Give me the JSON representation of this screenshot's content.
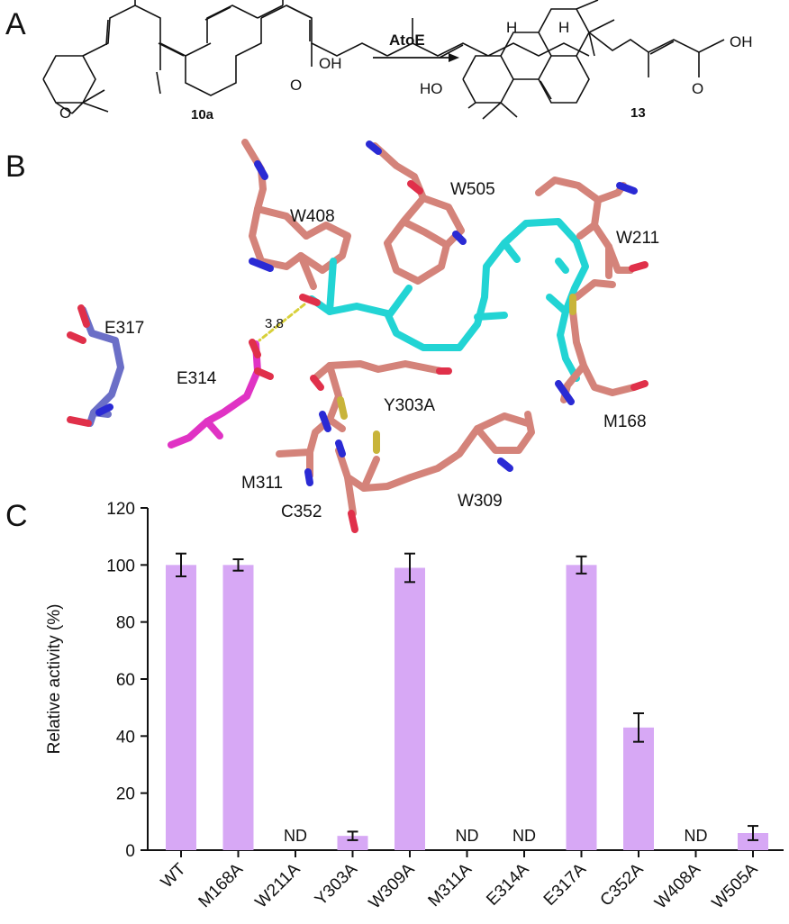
{
  "panels": {
    "A": "A",
    "B": "B",
    "C": "C"
  },
  "scheme": {
    "enzyme": "AtoE",
    "substrate_label": "10a",
    "product_label": "13",
    "oh_substrate": "OH",
    "oh_product_acid": "OH",
    "ho_product": "HO",
    "o_substrate": "O",
    "o_ketone_substrate": "O",
    "o_ketone_product": "O",
    "h_label_1": "H",
    "h_label_2": "H"
  },
  "structure": {
    "residues": [
      "W408",
      "W505",
      "W211",
      "E317",
      "E314",
      "Y303A",
      "M168",
      "M311",
      "C352",
      "W309"
    ],
    "distance": "3.8",
    "colors": {
      "protein": "#d4837a",
      "ligand": "#22d4d4",
      "e317": "#6b6fc7",
      "e314": "#e033c4",
      "nitrogen": "#2a2ad4",
      "oxygen": "#e0304a",
      "sulfur": "#c8b43a"
    }
  },
  "chart_data": {
    "type": "bar",
    "categories": [
      "WT",
      "M168A",
      "W211A",
      "Y303A",
      "W309A",
      "M311A",
      "E314A",
      "E317A",
      "C352A",
      "W408A",
      "W505A"
    ],
    "values": [
      100,
      100,
      0,
      5,
      99,
      0,
      0,
      100,
      43,
      0,
      6
    ],
    "errors": [
      4,
      2,
      0,
      1.5,
      5,
      0,
      0,
      3,
      5,
      0,
      2.5
    ],
    "nd_labels": [
      "",
      "",
      "ND",
      "",
      "",
      "ND",
      "ND",
      "",
      "",
      "ND",
      ""
    ],
    "ylabel": "Relative activity (%)",
    "ylim": [
      0,
      120
    ],
    "yticks": [
      0,
      20,
      40,
      60,
      80,
      100,
      120
    ],
    "bar_color": "#d7a8f5",
    "grid": false
  }
}
